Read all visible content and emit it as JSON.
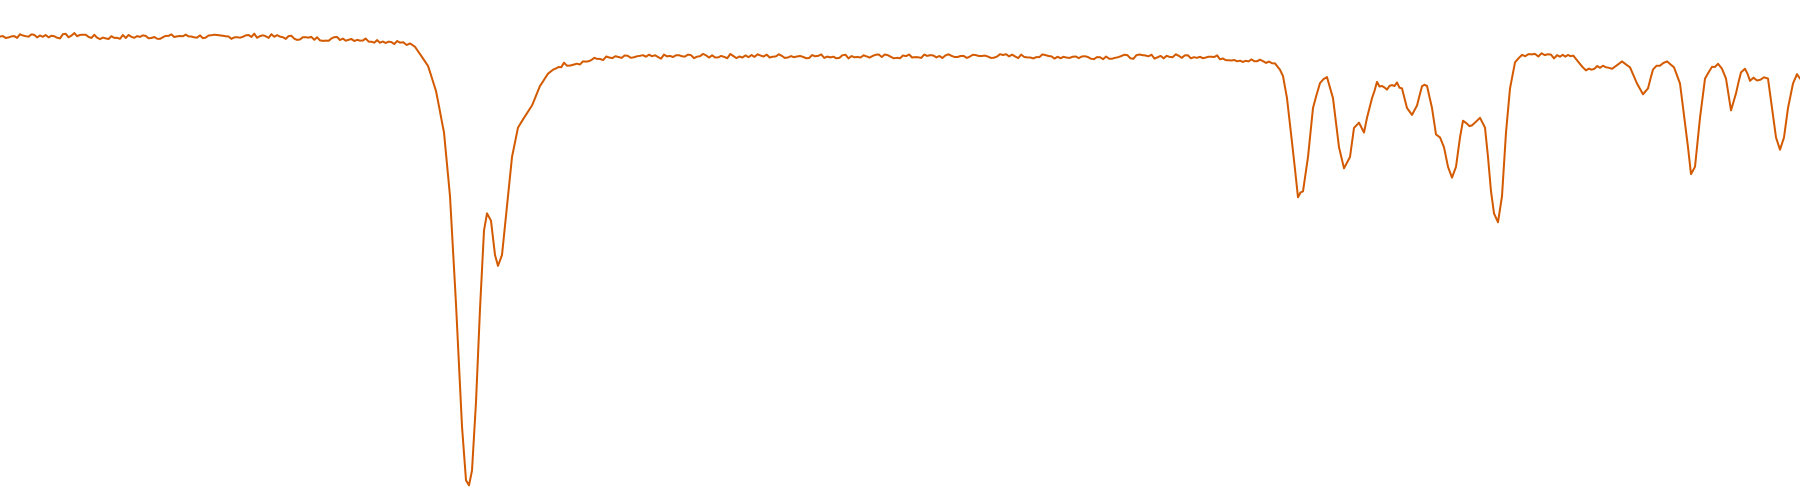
{
  "chart_data": {
    "type": "line",
    "title": "",
    "xlabel": "",
    "ylabel": "",
    "xlim": [
      0,
      1800
    ],
    "ylim": [
      0,
      100
    ],
    "grid": false,
    "legend": "none",
    "series": [
      {
        "color": "#d35a00",
        "points": [
          [
            0,
            94.6
          ],
          [
            20,
            94.7
          ],
          [
            40,
            94.8
          ],
          [
            60,
            94.6
          ],
          [
            80,
            95.0
          ],
          [
            100,
            94.3
          ],
          [
            120,
            94.5
          ],
          [
            140,
            94.6
          ],
          [
            160,
            94.5
          ],
          [
            180,
            94.7
          ],
          [
            200,
            94.6
          ],
          [
            220,
            94.5
          ],
          [
            240,
            94.6
          ],
          [
            260,
            94.8
          ],
          [
            280,
            94.5
          ],
          [
            300,
            94.3
          ],
          [
            320,
            94.1
          ],
          [
            340,
            94.2
          ],
          [
            360,
            94.0
          ],
          [
            380,
            93.7
          ],
          [
            400,
            93.4
          ],
          [
            410,
            92.8
          ],
          [
            415,
            92.5
          ],
          [
            420,
            91.0
          ],
          [
            428,
            88.6
          ],
          [
            436,
            83.5
          ],
          [
            444,
            75.0
          ],
          [
            450,
            62.0
          ],
          [
            456,
            40.0
          ],
          [
            462,
            15.0
          ],
          [
            466,
            3.9
          ],
          [
            469,
            3.0
          ],
          [
            472,
            6.0
          ],
          [
            476,
            20.0
          ],
          [
            480,
            39.0
          ],
          [
            484,
            55.0
          ],
          [
            487,
            58.5
          ],
          [
            491,
            57.0
          ],
          [
            495,
            50.0
          ],
          [
            498,
            47.8
          ],
          [
            502,
            50.0
          ],
          [
            507,
            60.0
          ],
          [
            512,
            70.0
          ],
          [
            518,
            76.0
          ],
          [
            524,
            78.0
          ],
          [
            532,
            80.5
          ],
          [
            540,
            84.5
          ],
          [
            548,
            87.0
          ],
          [
            556,
            88.3
          ],
          [
            564,
            88.9
          ],
          [
            580,
            89.3
          ],
          [
            600,
            90.1
          ],
          [
            640,
            90.4
          ],
          [
            700,
            90.6
          ],
          [
            800,
            90.6
          ],
          [
            900,
            90.5
          ],
          [
            1000,
            90.6
          ],
          [
            1100,
            90.4
          ],
          [
            1200,
            90.6
          ],
          [
            1220,
            90.3
          ],
          [
            1240,
            89.8
          ],
          [
            1260,
            89.5
          ],
          [
            1275,
            89.1
          ],
          [
            1280,
            87.8
          ],
          [
            1283,
            86.5
          ],
          [
            1287,
            82.0
          ],
          [
            1292,
            73.0
          ],
          [
            1298,
            62.0
          ],
          [
            1303,
            63.0
          ],
          [
            1308,
            70.0
          ],
          [
            1313,
            80.0
          ],
          [
            1320,
            85.3
          ],
          [
            1327,
            86.3
          ],
          [
            1333,
            82.0
          ],
          [
            1339,
            72.0
          ],
          [
            1344,
            67.7
          ],
          [
            1350,
            70.0
          ],
          [
            1354,
            76.0
          ],
          [
            1359,
            77.0
          ],
          [
            1364,
            75.0
          ],
          [
            1367,
            78.0
          ],
          [
            1372,
            82.0
          ],
          [
            1377,
            85.0
          ],
          [
            1382,
            84.5
          ],
          [
            1387,
            84.0
          ],
          [
            1392,
            84.5
          ],
          [
            1397,
            85.0
          ],
          [
            1402,
            84.0
          ],
          [
            1407,
            80.0
          ],
          [
            1412,
            78.6
          ],
          [
            1417,
            80.5
          ],
          [
            1422,
            84.5
          ],
          [
            1427,
            84.5
          ],
          [
            1432,
            80.0
          ],
          [
            1436,
            75.0
          ],
          [
            1440,
            74.0
          ],
          [
            1444,
            72.0
          ],
          [
            1448,
            68.0
          ],
          [
            1452,
            65.8
          ],
          [
            1456,
            68.0
          ],
          [
            1460,
            74.0
          ],
          [
            1463,
            77.5
          ],
          [
            1467,
            77.0
          ],
          [
            1472,
            76.5
          ],
          [
            1476,
            77.0
          ],
          [
            1480,
            78.0
          ],
          [
            1485,
            76.0
          ],
          [
            1488,
            70.0
          ],
          [
            1491,
            63.0
          ],
          [
            1494,
            58.5
          ],
          [
            1498,
            56.7
          ],
          [
            1502,
            62.0
          ],
          [
            1506,
            75.0
          ],
          [
            1510,
            84.0
          ],
          [
            1515,
            89.3
          ],
          [
            1522,
            91.0
          ],
          [
            1535,
            91.0
          ],
          [
            1548,
            90.8
          ],
          [
            1560,
            90.2
          ],
          [
            1568,
            91.0
          ],
          [
            1576,
            90.0
          ],
          [
            1586,
            87.5
          ],
          [
            1600,
            88.5
          ],
          [
            1612,
            88.0
          ],
          [
            1622,
            89.5
          ],
          [
            1630,
            88.3
          ],
          [
            1637,
            85.0
          ],
          [
            1643,
            82.8
          ],
          [
            1648,
            84.0
          ],
          [
            1653,
            88.0
          ],
          [
            1660,
            89.0
          ],
          [
            1667,
            89.5
          ],
          [
            1674,
            88.3
          ],
          [
            1680,
            85.0
          ],
          [
            1684,
            78.5
          ],
          [
            1688,
            72.0
          ],
          [
            1691,
            66.5
          ],
          [
            1695,
            68.0
          ],
          [
            1700,
            78.0
          ],
          [
            1705,
            86.0
          ],
          [
            1712,
            88.5
          ],
          [
            1718,
            89.0
          ],
          [
            1722,
            88.0
          ],
          [
            1726,
            86.0
          ],
          [
            1731,
            79.5
          ],
          [
            1736,
            83.0
          ],
          [
            1741,
            87.5
          ],
          [
            1745,
            88.0
          ],
          [
            1750,
            86.0
          ],
          [
            1757,
            85.5
          ],
          [
            1764,
            86.5
          ],
          [
            1768,
            86.0
          ],
          [
            1772,
            80.0
          ],
          [
            1776,
            74.0
          ],
          [
            1780,
            71.5
          ],
          [
            1784,
            74.0
          ],
          [
            1788,
            80.0
          ],
          [
            1793,
            85.0
          ],
          [
            1797,
            86.5
          ],
          [
            1800,
            86.0
          ]
        ]
      }
    ]
  }
}
